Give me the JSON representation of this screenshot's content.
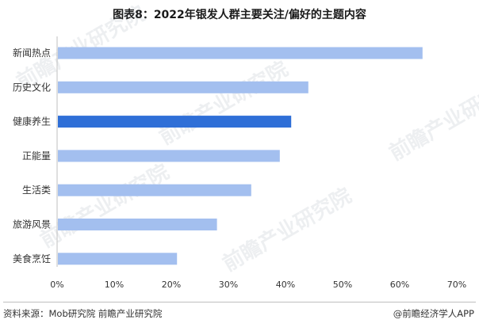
{
  "title": "图表8：2022年银发人群主要关注/偏好的主题内容",
  "source": "资料来源：Mob研究院 前瞻产业研究院",
  "credit": "@前瞻经济学人APP",
  "watermark_text": "前瞻产业研究院",
  "colors": {
    "bar_default": "#a3bfef",
    "bar_highlight": "#2f6fd7",
    "axis": "#bfbfbf",
    "text": "#333333"
  },
  "chart_data": {
    "type": "bar",
    "orientation": "horizontal",
    "categories": [
      "新闻热点",
      "历史文化",
      "健康养生",
      "正能量",
      "生活类",
      "旅游风景",
      "美食烹饪"
    ],
    "values": [
      64,
      44,
      41,
      39,
      34,
      28,
      21
    ],
    "highlight_category": "健康养生",
    "xlim": [
      0,
      70
    ],
    "xticks": [
      0,
      10,
      20,
      30,
      40,
      50,
      60,
      70
    ],
    "tick_suffix": "%",
    "grid": false
  }
}
